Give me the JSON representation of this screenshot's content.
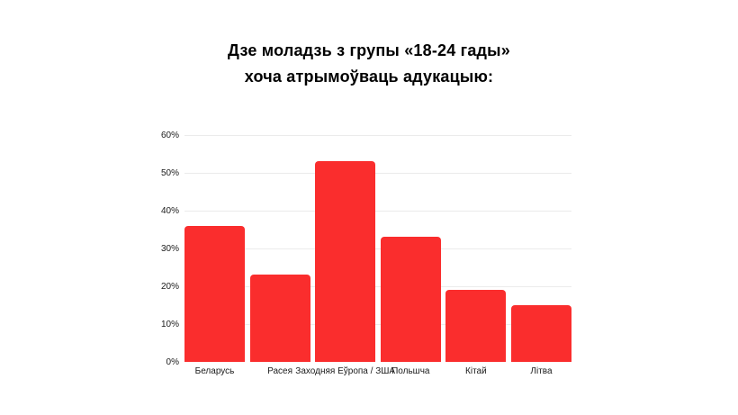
{
  "title": {
    "line1": "Дзе моладзь з групы «18-24 гады»",
    "line2": "хоча атрымоўваць адукацыю:"
  },
  "chart_data": {
    "type": "bar",
    "title": "Дзе моладзь з групы «18-24 гады» хоча атрымоўваць адукацыю:",
    "categories": [
      "Беларусь",
      "Расея",
      "Заходняя Еўропа / ЗША",
      "Польшча",
      "Кітай",
      "Літва"
    ],
    "values": [
      36,
      23,
      53,
      33,
      19,
      15
    ],
    "unit": "%",
    "xlabel": "",
    "ylabel": "",
    "ylim": [
      0,
      60
    ],
    "yticks": [
      0,
      10,
      20,
      30,
      40,
      50,
      60
    ],
    "ytick_labels": [
      "0%",
      "10%",
      "20%",
      "30%",
      "40%",
      "50%",
      "60%"
    ],
    "grid": true,
    "legend": false,
    "bar_color": "#FA2D2D",
    "gridline_color": "#EBEBEB",
    "text_color": "#1a1a1a"
  }
}
